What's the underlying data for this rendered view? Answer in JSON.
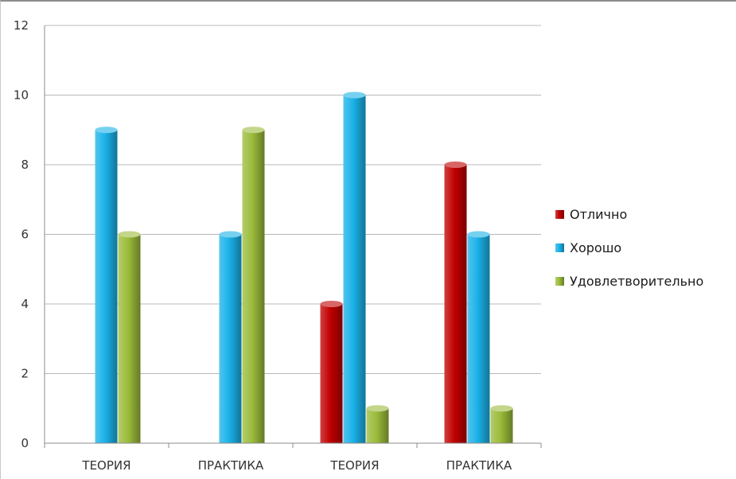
{
  "chart_data": {
    "type": "bar",
    "categories": [
      "ТЕОРИЯ",
      "ПРАКТИКА",
      "ТЕОРИЯ",
      "ПРАКТИКА"
    ],
    "series": [
      {
        "name": "Отлично",
        "values": [
          0,
          0,
          4,
          8
        ],
        "color": "#c00000"
      },
      {
        "name": "Хорошо",
        "values": [
          9,
          6,
          10,
          6
        ],
        "color": "#1ab2e8"
      },
      {
        "name": "Удовлетворительно",
        "values": [
          6,
          9,
          1,
          1
        ],
        "color": "#9bbb3a"
      }
    ],
    "ylim": [
      0,
      12
    ],
    "yticks": [
      "0",
      "2",
      "4",
      "6",
      "8",
      "10",
      "12"
    ],
    "grid": true,
    "legend_position": "right",
    "title": "",
    "xlabel": "",
    "ylabel": ""
  }
}
